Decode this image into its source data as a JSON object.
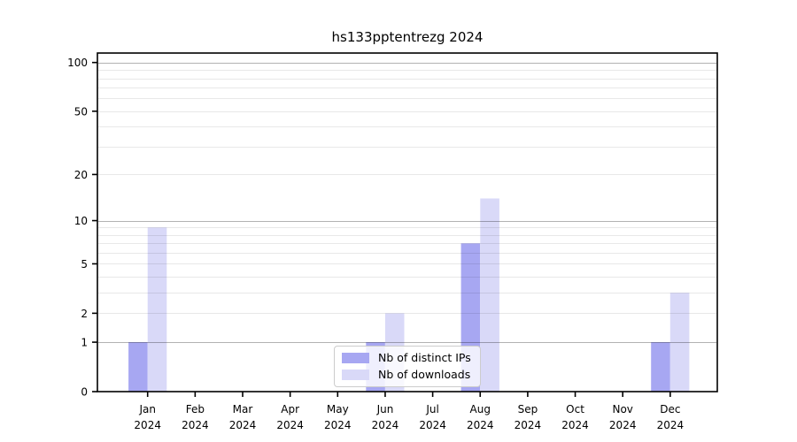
{
  "chart_data": {
    "type": "bar",
    "title": "hs133pptentrezg 2024",
    "categories": [
      "Jan",
      "Feb",
      "Mar",
      "Apr",
      "May",
      "Jun",
      "Jul",
      "Aug",
      "Sep",
      "Oct",
      "Nov",
      "Dec"
    ],
    "x_tick_second_line": "2024",
    "series": [
      {
        "name": "Nb of distinct IPs",
        "color": "#a7a7f2",
        "values": [
          1,
          0,
          0,
          0,
          0,
          1,
          0,
          7,
          0,
          0,
          0,
          1
        ]
      },
      {
        "name": "Nb of downloads",
        "color": "#d9d9f8",
        "values": [
          9,
          0,
          0,
          0,
          0,
          2,
          0,
          14,
          0,
          0,
          0,
          3
        ]
      }
    ],
    "xlabel": "",
    "ylabel": "",
    "yscale": "log1p",
    "ylim": [
      0,
      115
    ],
    "yticks": [
      0,
      1,
      2,
      5,
      10,
      20,
      50,
      100
    ],
    "gridlines": {
      "minor": [
        2,
        3,
        4,
        5,
        6,
        7,
        8,
        9,
        20,
        30,
        40,
        50,
        60,
        70,
        80,
        90
      ],
      "major": [
        1,
        10,
        100
      ]
    },
    "grid": true,
    "legend_position": "lower center"
  }
}
